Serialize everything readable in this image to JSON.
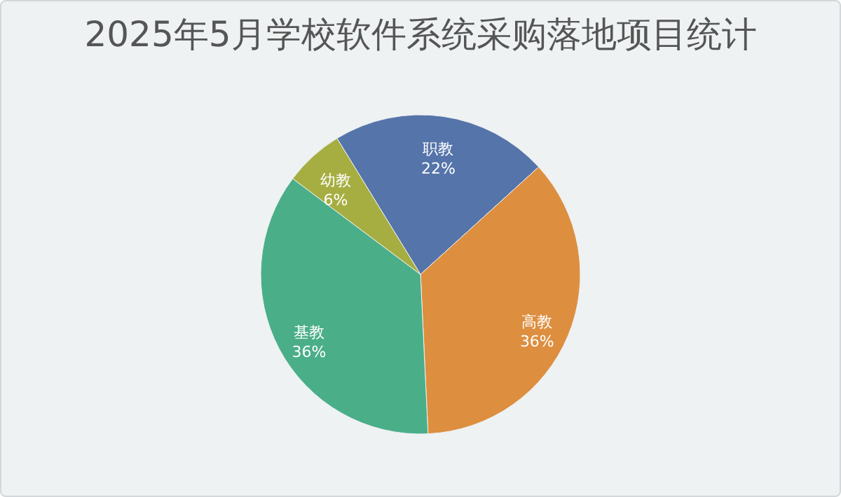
{
  "chart_data": {
    "type": "pie",
    "title": "2025年5月学校软件系统采购落地项目统计",
    "categories": [
      "职教",
      "高教",
      "基教",
      "幼教"
    ],
    "values": [
      22,
      36,
      36,
      6
    ],
    "value_labels": [
      "22%",
      "36%",
      "36%",
      "6%"
    ],
    "colors": [
      "#5574a9",
      "#dd8e3f",
      "#4aae89",
      "#a6ae42"
    ],
    "legend": false
  }
}
